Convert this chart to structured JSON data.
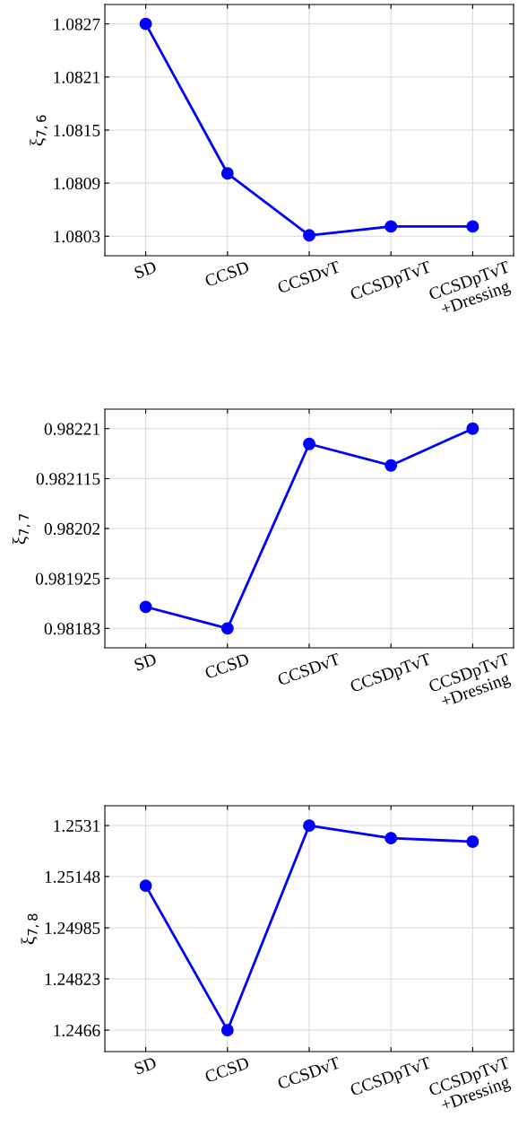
{
  "chart_data": [
    {
      "type": "line",
      "ylabel": "ξ$_{7,6}$",
      "categories": [
        "SD",
        "CCSD",
        "CCSDvT",
        "CCSDpTvT",
        "CCSDpTvT\n+Dressing"
      ],
      "series": [
        {
          "color": "#0000ff",
          "values": [
            1.0827,
            1.08101,
            1.08031,
            1.08041,
            1.08041
          ]
        }
      ],
      "ylim": [
        1.08008,
        1.08292
      ],
      "yticks": [
        1.0803,
        1.0809,
        1.0815,
        1.0821,
        1.0827
      ],
      "grid": true,
      "marker": "circle",
      "line_style": "solid"
    },
    {
      "type": "line",
      "ylabel": "ξ$_{7,7}$",
      "categories": [
        "SD",
        "CCSD",
        "CCSDvT",
        "CCSDpTvT",
        "CCSDpTvT\n+Dressing"
      ],
      "series": [
        {
          "color": "#0000ff",
          "values": [
            0.981871,
            0.98183,
            0.982181,
            0.98214,
            0.98221
          ]
        }
      ],
      "ylim": [
        0.981793,
        0.982247
      ],
      "yticks": [
        0.98183,
        0.981925,
        0.98202,
        0.982115,
        0.98221
      ],
      "grid": true,
      "marker": "circle",
      "line_style": "solid"
    },
    {
      "type": "line",
      "ylabel": "ξ$_{7,8}$",
      "categories": [
        "SD",
        "CCSD",
        "CCSDvT",
        "CCSDpTvT",
        "CCSDpTvT\n+Dressing"
      ],
      "series": [
        {
          "color": "#0000ff",
          "values": [
            1.25119,
            1.2466,
            1.2531,
            1.2527,
            1.25259
          ]
        }
      ],
      "ylim": [
        1.24592,
        1.25373
      ],
      "yticks": [
        1.2466,
        1.24823,
        1.24985,
        1.25148,
        1.2531
      ],
      "grid": true,
      "marker": "circle",
      "line_style": "solid"
    }
  ]
}
